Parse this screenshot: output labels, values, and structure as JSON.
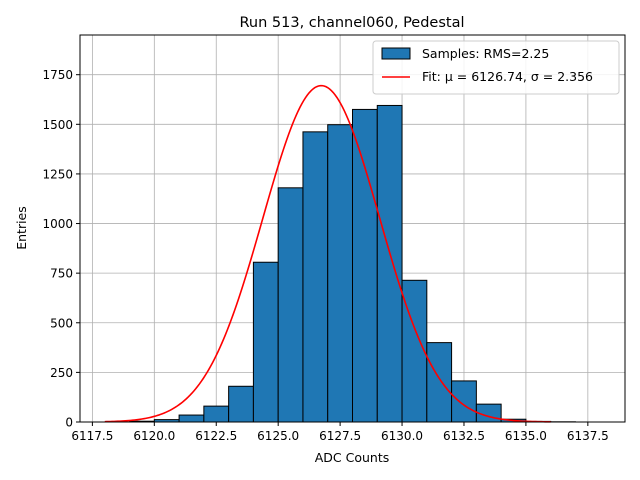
{
  "chart_data": {
    "type": "histogram",
    "title": "Run 513, channel060, Pedestal",
    "xlabel": "ADC Counts",
    "ylabel": "Entries",
    "xlim": [
      6117.0,
      6139.0
    ],
    "ylim": [
      0,
      1950
    ],
    "xticks": [
      6117.5,
      6120.0,
      6122.5,
      6125.0,
      6127.5,
      6130.0,
      6132.5,
      6135.0,
      6137.5
    ],
    "xtick_labels": [
      "6117.5",
      "6120.0",
      "6122.5",
      "6125.0",
      "6127.5",
      "6130.0",
      "6132.5",
      "6135.0",
      "6137.5"
    ],
    "yticks": [
      0,
      250,
      500,
      750,
      1000,
      1250,
      1500,
      1750
    ],
    "ytick_labels": [
      "0",
      "250",
      "500",
      "750",
      "1000",
      "1250",
      "1500",
      "1750"
    ],
    "grid": true,
    "bin_edges": [
      6118,
      6119,
      6120,
      6121,
      6122,
      6123,
      6124,
      6125,
      6126,
      6127,
      6128,
      6129,
      6130,
      6131,
      6132,
      6133,
      6134,
      6135,
      6136,
      6137,
      6138
    ],
    "counts": [
      0,
      4,
      12,
      35,
      80,
      180,
      805,
      1180,
      1462,
      1498,
      1575,
      1595,
      714,
      400,
      207,
      90,
      14,
      3,
      1,
      0
    ],
    "fit": {
      "mu": 6126.74,
      "sigma": 2.356,
      "amplitude": 1695,
      "x_range": [
        6118,
        6136
      ]
    },
    "legend": {
      "position": "top-right",
      "entries": [
        {
          "label": "Samples: RMS=2.25",
          "kind": "patch"
        },
        {
          "label": "Fit: μ = 6126.74, σ = 2.356",
          "kind": "line"
        }
      ]
    },
    "colors": {
      "bars": "#1f77b4",
      "bar_edge": "#000000",
      "fit": "#ff0000",
      "grid": "#b0b0b0"
    }
  }
}
